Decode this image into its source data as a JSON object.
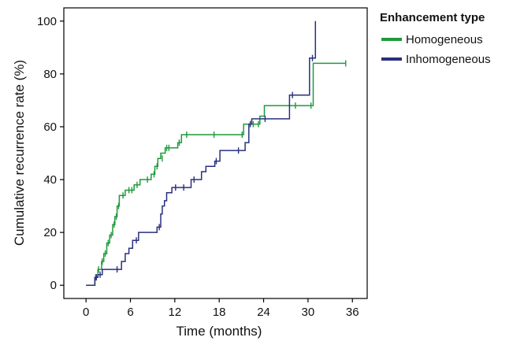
{
  "chart_data": {
    "type": "line",
    "subtype": "kaplan-meier-step",
    "xlabel": "Time (months)",
    "ylabel": "Cumulative recurrence rate (%)",
    "xlim": [
      -3,
      38
    ],
    "ylim": [
      -5,
      105
    ],
    "xticks": [
      0,
      6,
      12,
      18,
      24,
      30,
      36
    ],
    "yticks": [
      0,
      20,
      40,
      60,
      80,
      100
    ],
    "grid": false,
    "legend": {
      "title": "Enhancement type",
      "placement": "top-right, outside plot"
    },
    "series": [
      {
        "name": "Homogeneous",
        "color": "#1f9a3c",
        "steps": [
          [
            0,
            0
          ],
          [
            1.2,
            0
          ],
          [
            1.2,
            3
          ],
          [
            1.6,
            3
          ],
          [
            1.6,
            6
          ],
          [
            2.1,
            6
          ],
          [
            2.1,
            9
          ],
          [
            2.4,
            9
          ],
          [
            2.4,
            12
          ],
          [
            2.8,
            12
          ],
          [
            2.8,
            16
          ],
          [
            3.2,
            16
          ],
          [
            3.2,
            19
          ],
          [
            3.6,
            19
          ],
          [
            3.6,
            23
          ],
          [
            3.9,
            23
          ],
          [
            3.9,
            26
          ],
          [
            4.2,
            26
          ],
          [
            4.2,
            30
          ],
          [
            4.5,
            30
          ],
          [
            4.5,
            34
          ],
          [
            5.3,
            34
          ],
          [
            5.3,
            36
          ],
          [
            6.5,
            36
          ],
          [
            6.5,
            38
          ],
          [
            7.3,
            38
          ],
          [
            7.3,
            40
          ],
          [
            8.8,
            40
          ],
          [
            8.8,
            42
          ],
          [
            9.3,
            42
          ],
          [
            9.3,
            45
          ],
          [
            9.7,
            45
          ],
          [
            9.7,
            48
          ],
          [
            10.1,
            48
          ],
          [
            10.1,
            50
          ],
          [
            10.7,
            50
          ],
          [
            10.7,
            52
          ],
          [
            12.4,
            52
          ],
          [
            12.4,
            54
          ],
          [
            12.9,
            54
          ],
          [
            12.9,
            57
          ],
          [
            21.3,
            57
          ],
          [
            21.3,
            61
          ],
          [
            23.5,
            61
          ],
          [
            23.5,
            64
          ],
          [
            24.1,
            64
          ],
          [
            24.1,
            68
          ],
          [
            30.7,
            68
          ],
          [
            30.7,
            84
          ],
          [
            35.1,
            84
          ]
        ],
        "censor": [
          [
            1.3,
            3
          ],
          [
            1.7,
            6
          ],
          [
            2.2,
            9
          ],
          [
            2.6,
            12
          ],
          [
            3.0,
            16
          ],
          [
            3.4,
            19
          ],
          [
            3.8,
            23
          ],
          [
            4.1,
            26
          ],
          [
            4.4,
            30
          ],
          [
            5.0,
            34
          ],
          [
            5.8,
            36
          ],
          [
            6.2,
            36
          ],
          [
            6.9,
            38
          ],
          [
            8.3,
            40
          ],
          [
            9.2,
            42
          ],
          [
            9.6,
            45
          ],
          [
            10.3,
            48
          ],
          [
            10.9,
            52
          ],
          [
            11.2,
            52
          ],
          [
            12.6,
            54
          ],
          [
            13.6,
            57
          ],
          [
            17.3,
            57
          ],
          [
            21.1,
            57
          ],
          [
            22.6,
            61
          ],
          [
            23.3,
            61
          ],
          [
            28.3,
            68
          ],
          [
            30.4,
            68
          ],
          [
            35.1,
            84
          ]
        ]
      },
      {
        "name": "Inhomogeneous",
        "color": "#28307e",
        "steps": [
          [
            0,
            0
          ],
          [
            1.2,
            0
          ],
          [
            1.2,
            3
          ],
          [
            1.6,
            3
          ],
          [
            1.6,
            4
          ],
          [
            2.2,
            4
          ],
          [
            2.2,
            6
          ],
          [
            4.8,
            6
          ],
          [
            4.8,
            9
          ],
          [
            5.3,
            9
          ],
          [
            5.3,
            12
          ],
          [
            5.8,
            12
          ],
          [
            5.8,
            14
          ],
          [
            6.3,
            14
          ],
          [
            6.3,
            17
          ],
          [
            7.1,
            17
          ],
          [
            7.1,
            20
          ],
          [
            9.6,
            20
          ],
          [
            9.6,
            22
          ],
          [
            10.1,
            22
          ],
          [
            10.1,
            27
          ],
          [
            10.3,
            27
          ],
          [
            10.3,
            30
          ],
          [
            10.6,
            30
          ],
          [
            10.6,
            32
          ],
          [
            10.9,
            32
          ],
          [
            10.9,
            35
          ],
          [
            11.6,
            35
          ],
          [
            11.6,
            37
          ],
          [
            14.2,
            37
          ],
          [
            14.2,
            40
          ],
          [
            15.6,
            40
          ],
          [
            15.6,
            43
          ],
          [
            16.2,
            43
          ],
          [
            16.2,
            45
          ],
          [
            17.4,
            45
          ],
          [
            17.4,
            47
          ],
          [
            18.1,
            47
          ],
          [
            18.1,
            51
          ],
          [
            21.5,
            51
          ],
          [
            21.5,
            54
          ],
          [
            22.0,
            54
          ],
          [
            22.0,
            61
          ],
          [
            22.4,
            61
          ],
          [
            22.4,
            63
          ],
          [
            27.5,
            63
          ],
          [
            27.5,
            72
          ],
          [
            30.2,
            72
          ],
          [
            30.2,
            86
          ],
          [
            31.0,
            86
          ],
          [
            31.0,
            100
          ]
        ],
        "censor": [
          [
            1.4,
            3
          ],
          [
            1.9,
            4
          ],
          [
            4.2,
            6
          ],
          [
            6.8,
            17
          ],
          [
            9.9,
            22
          ],
          [
            12.1,
            37
          ],
          [
            13.2,
            37
          ],
          [
            14.6,
            40
          ],
          [
            17.6,
            47
          ],
          [
            20.6,
            51
          ],
          [
            22.2,
            61
          ],
          [
            24.2,
            63
          ],
          [
            27.9,
            72
          ],
          [
            30.6,
            86
          ]
        ]
      }
    ]
  }
}
